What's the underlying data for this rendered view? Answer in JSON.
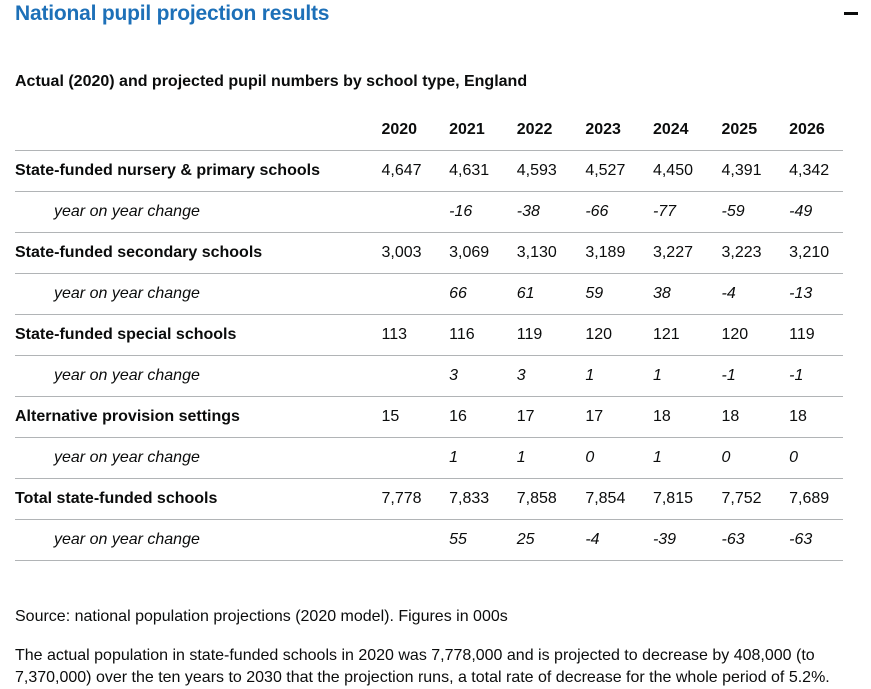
{
  "section": {
    "title": "National pupil projection results",
    "collapse_icon": "minus-icon"
  },
  "table": {
    "caption": "Actual (2020) and projected pupil numbers by school type, England",
    "years": [
      "2020",
      "2021",
      "2022",
      "2023",
      "2024",
      "2025",
      "2026"
    ],
    "rows": [
      {
        "label": "State-funded nursery & primary schools",
        "values": [
          "4,647",
          "4,631",
          "4,593",
          "4,527",
          "4,450",
          "4,391",
          "4,342"
        ],
        "change_label": "year on year change",
        "change": [
          "",
          "-16",
          "-38",
          "-66",
          "-77",
          "-59",
          "-49"
        ]
      },
      {
        "label": "State-funded secondary schools",
        "values": [
          "3,003",
          "3,069",
          "3,130",
          "3,189",
          "3,227",
          "3,223",
          "3,210"
        ],
        "change_label": "year on year change",
        "change": [
          "",
          "66",
          "61",
          "59",
          "38",
          "-4",
          "-13"
        ]
      },
      {
        "label": "State-funded special schools",
        "values": [
          "113",
          "116",
          "119",
          "120",
          "121",
          "120",
          "119"
        ],
        "change_label": "year on year change",
        "change": [
          "",
          "3",
          "3",
          "1",
          "1",
          "-1",
          "-1"
        ]
      },
      {
        "label": "Alternative provision settings",
        "values": [
          "15",
          "16",
          "17",
          "17",
          "18",
          "18",
          "18"
        ],
        "change_label": "year on year change",
        "change": [
          "",
          "1",
          "1",
          "0",
          "1",
          "0",
          "0"
        ]
      },
      {
        "label": "Total state-funded schools",
        "values": [
          "7,778",
          "7,833",
          "7,858",
          "7,854",
          "7,815",
          "7,752",
          "7,689"
        ],
        "change_label": "year on year change",
        "change": [
          "",
          "55",
          "25",
          "-4",
          "-39",
          "-63",
          "-63"
        ]
      }
    ]
  },
  "source": "Source: national population projections (2020 model). Figures in 000s",
  "summary": "The actual population in state-funded schools in 2020 was 7,778,000 and is projected to decrease by 408,000 (to 7,370,000) over the ten years to 2030 that the projection runs, a total rate of decrease for the whole period of 5.2%."
}
